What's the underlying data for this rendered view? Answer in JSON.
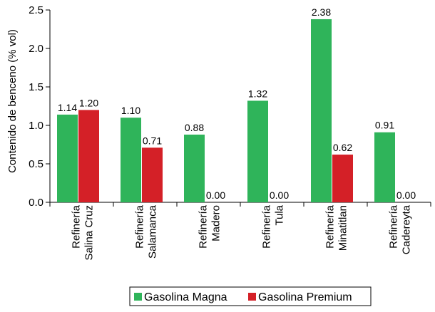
{
  "chart_data": {
    "type": "bar",
    "ylabel": "Contenido de benceno (% vol)",
    "ylim": [
      0,
      2.5
    ],
    "yticks": [
      "0.0",
      "0.5",
      "1.0",
      "1.5",
      "2.0",
      "2.5"
    ],
    "categories": [
      [
        "Refinería",
        "Salina Cruz"
      ],
      [
        "Refinería",
        "Salamanca"
      ],
      [
        "Refinería",
        "Madero"
      ],
      [
        "Refinería",
        "Tula"
      ],
      [
        "Refinería",
        "Minatitlan"
      ],
      [
        "Refinería",
        "Cadereyta"
      ]
    ],
    "series": [
      {
        "name": "Gasolina Magna",
        "color": "#2fb45a",
        "values": [
          1.14,
          1.1,
          0.88,
          1.32,
          2.38,
          0.91
        ],
        "labels": [
          "1.14",
          "1.10",
          "0.88",
          "1.32",
          "2.38",
          "0.91"
        ]
      },
      {
        "name": "Gasolina Premium",
        "color": "#d42027",
        "values": [
          1.2,
          0.71,
          0.0,
          0.0,
          0.62,
          0.0
        ],
        "labels": [
          "1.20",
          "0.71",
          "0.00",
          "0.00",
          "0.62",
          "0.00"
        ]
      }
    ],
    "legend_position": "bottom",
    "grid": false
  }
}
